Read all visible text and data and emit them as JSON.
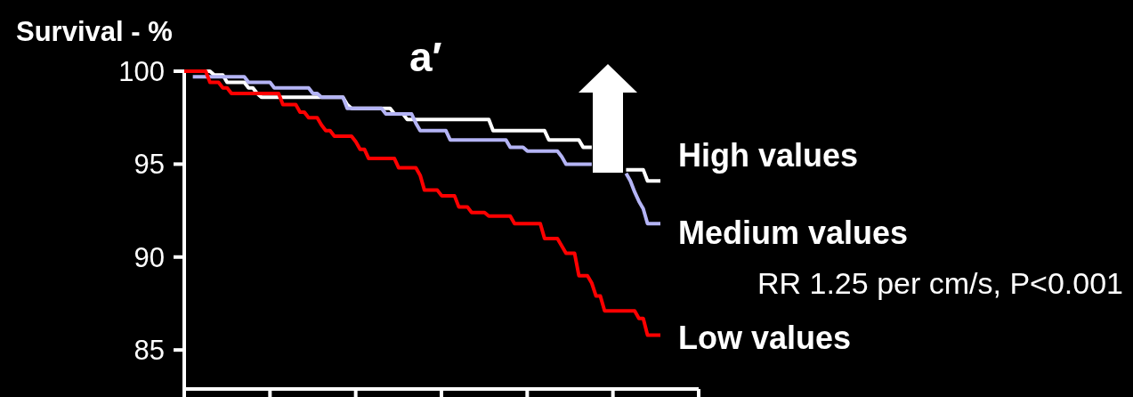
{
  "chart_data": {
    "type": "line",
    "title": "a′",
    "ylabel": "Survival - %",
    "annotations": [
      "RR 1.25 per cm/s, P<0.001"
    ],
    "categories": [
      null,
      null,
      null,
      null,
      null,
      null,
      null,
      null,
      null,
      null,
      null,
      null,
      null,
      null,
      null,
      null,
      null,
      null,
      null,
      null,
      null,
      null,
      null,
      null,
      null,
      null,
      null,
      null,
      null,
      null,
      null,
      null,
      null,
      null,
      null,
      null,
      null,
      null,
      null,
      null,
      null,
      null,
      null,
      null,
      null,
      null,
      null,
      null,
      null,
      null,
      null,
      null,
      null,
      null,
      null,
      null,
      null,
      null,
      null,
      null,
      null,
      null,
      null,
      null,
      null,
      null,
      null,
      null,
      null,
      null,
      null,
      null,
      null,
      null,
      null,
      null,
      null,
      null,
      null,
      null,
      null,
      null,
      null,
      null,
      null,
      null,
      null,
      null,
      null,
      null,
      null,
      null,
      null,
      null,
      null,
      null,
      null,
      null,
      null,
      null,
      null,
      null,
      null,
      null,
      null,
      null,
      null,
      null,
      null,
      null,
      null,
      null
    ],
    "ylim": [
      82.9,
      100
    ],
    "yticks": [
      85,
      90,
      95,
      100
    ],
    "tick_labels": "y",
    "grid": false,
    "legend": "right",
    "marker": "none",
    "line_style": "solid",
    "series": [
      {
        "name": "High values",
        "color": "#ffffff",
        "values": [
          100,
          100,
          100,
          100,
          100,
          100,
          100,
          99.8,
          99.8,
          99.8,
          99.4,
          99.4,
          99.4,
          99.4,
          99.4,
          99.1,
          99.1,
          98.8,
          98.6,
          98.6,
          98.6,
          98.6,
          98.6,
          98.6,
          98.6,
          98.6,
          98.6,
          98.6,
          98.6,
          98.6,
          98.6,
          98.6,
          98.6,
          98.6,
          98.6,
          98.6,
          98.6,
          98.6,
          98.2,
          98.0,
          98.0,
          98.0,
          98.0,
          98.0,
          98.0,
          98.0,
          98.0,
          98.0,
          98.0,
          97.7,
          97.7,
          97.7,
          97.4,
          97.4,
          97.4,
          97.4,
          97.4,
          97.4,
          97.4,
          97.4,
          97.4,
          97.4,
          97.4,
          97.4,
          97.4,
          97.4,
          97.4,
          97.4,
          97.4,
          97.4,
          97.4,
          97.4,
          96.8,
          96.8,
          96.8,
          96.8,
          96.8,
          96.8,
          96.8,
          96.8,
          96.8,
          96.8,
          96.8,
          96.8,
          96.8,
          96.3,
          96.3,
          96.3,
          96.3,
          96.3,
          96.3,
          96.3,
          96.3,
          95.9,
          95.9,
          95.9,
          null,
          null,
          null,
          null,
          null,
          null,
          null,
          94.7,
          94.7,
          94.7,
          94.7,
          94.7,
          94.1,
          94.1,
          94.1,
          94.1
        ]
      },
      {
        "name": "Medium values",
        "color": "#b4b4f5",
        "values": [
          null,
          null,
          99.7,
          99.7,
          99.7,
          99.7,
          99.7,
          99.7,
          99.7,
          99.7,
          99.7,
          99.7,
          99.7,
          99.7,
          99.7,
          99.4,
          99.4,
          99.4,
          99.4,
          99.4,
          99.4,
          99.1,
          99.1,
          99.1,
          99.1,
          99.1,
          99.1,
          99.1,
          99.1,
          99.1,
          98.8,
          98.8,
          98.6,
          98.6,
          98.6,
          98.6,
          98.6,
          98.6,
          98.0,
          98.0,
          98.0,
          98.0,
          98.0,
          98.0,
          98.0,
          98.0,
          98.0,
          97.7,
          97.7,
          97.7,
          97.7,
          97.7,
          97.7,
          97.7,
          97.2,
          96.8,
          96.8,
          96.8,
          96.8,
          96.8,
          96.8,
          96.8,
          96.3,
          96.3,
          96.3,
          96.3,
          96.3,
          96.3,
          96.3,
          96.3,
          96.3,
          96.3,
          96.3,
          96.3,
          96.3,
          96.3,
          95.9,
          95.9,
          95.9,
          95.9,
          95.7,
          95.7,
          95.7,
          95.7,
          95.7,
          95.7,
          95.7,
          95.7,
          95.4,
          95.0,
          95.0,
          95.0,
          95.0,
          95.0,
          95.0,
          95.0,
          null,
          null,
          null,
          null,
          null,
          null,
          null,
          94.5,
          94.1,
          93.5,
          93.0,
          92.6,
          91.8,
          91.8,
          91.8,
          91.8
        ]
      },
      {
        "name": "Low values",
        "color": "#ff0000",
        "values": [
          100,
          100,
          100,
          100,
          100,
          100,
          99.4,
          99.4,
          99.4,
          99.1,
          99.1,
          98.8,
          98.8,
          98.8,
          98.8,
          98.8,
          98.8,
          98.8,
          98.8,
          98.8,
          98.8,
          98.8,
          98.8,
          98.2,
          98.2,
          98.2,
          98.2,
          97.8,
          97.8,
          97.5,
          97.5,
          97.5,
          97.1,
          96.8,
          96.8,
          96.5,
          96.5,
          96.5,
          96.5,
          96.5,
          96.2,
          95.8,
          95.8,
          95.3,
          95.3,
          95.3,
          95.3,
          95.3,
          95.3,
          95.3,
          94.8,
          94.8,
          94.8,
          94.8,
          94.8,
          94.4,
          93.6,
          93.6,
          93.6,
          93.6,
          93.3,
          93.3,
          93.3,
          93.3,
          92.7,
          92.7,
          92.7,
          92.4,
          92.4,
          92.4,
          92.4,
          92.2,
          92.2,
          92.2,
          92.2,
          92.2,
          92.2,
          91.8,
          91.8,
          91.8,
          91.8,
          91.8,
          91.8,
          91.8,
          91.0,
          91.0,
          91.0,
          91.0,
          90.6,
          90.2,
          90.2,
          90.2,
          89.0,
          89.0,
          89.0,
          88.6,
          87.9,
          87.9,
          87.1,
          87.1,
          87.1,
          87.1,
          87.1,
          87.1,
          87.1,
          87.1,
          86.7,
          86.7,
          85.8,
          85.8,
          85.8,
          85.8
        ]
      }
    ]
  }
}
